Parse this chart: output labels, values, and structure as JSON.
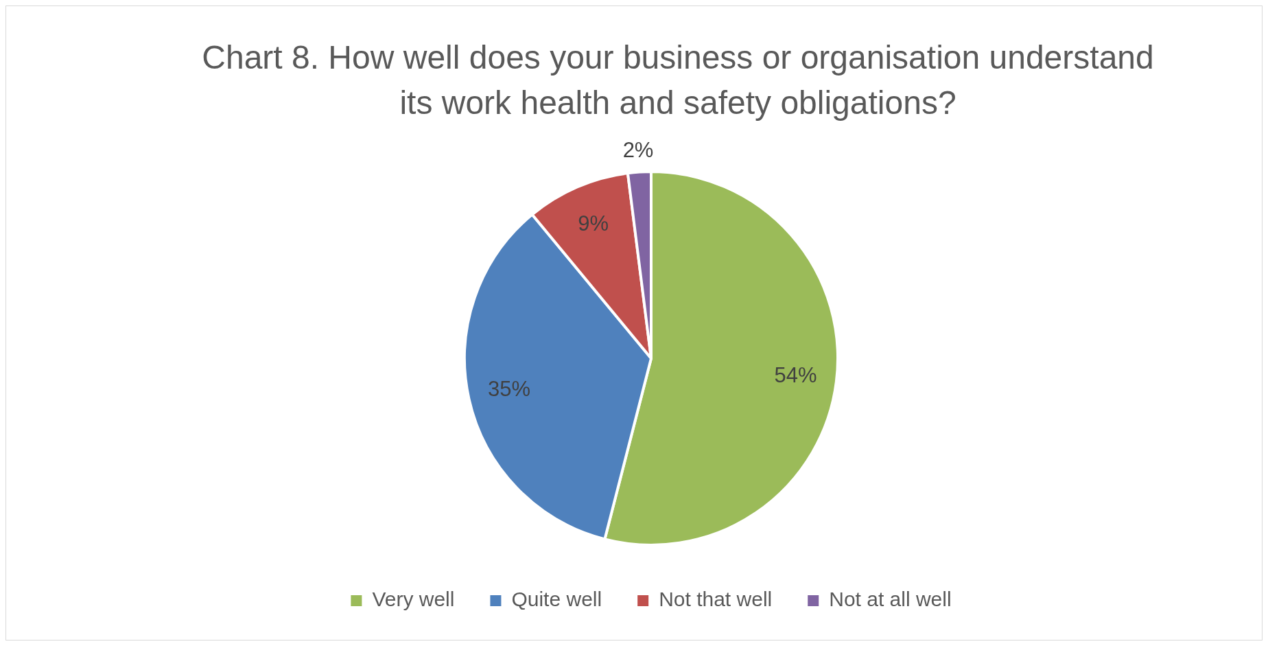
{
  "chart_data": {
    "type": "pie",
    "title": "Chart 8. How well does your business or organisation understand its work health and safety obligations?",
    "categories": [
      "Very well",
      "Quite well",
      "Not that well",
      "Not at all well"
    ],
    "values": [
      54,
      35,
      9,
      2
    ],
    "value_labels": [
      "54%",
      "35%",
      "9%",
      "2%"
    ],
    "colors": [
      "#9bbb59",
      "#4f81bd",
      "#c0504d",
      "#8064a2"
    ],
    "legend": "bottom"
  }
}
